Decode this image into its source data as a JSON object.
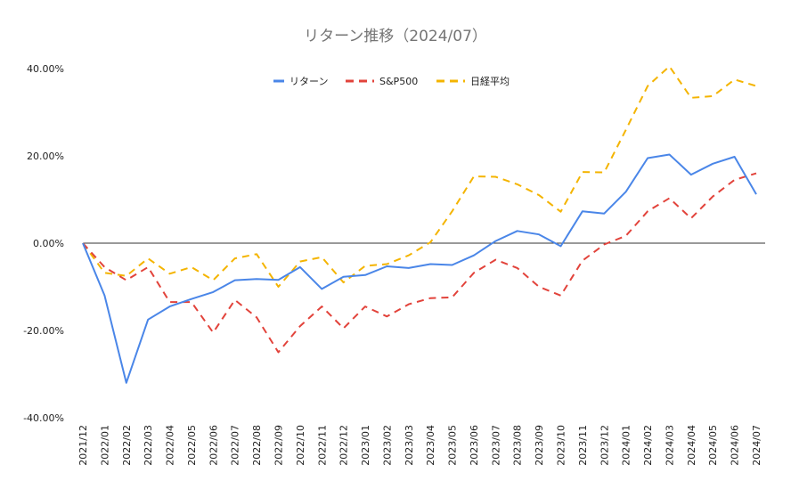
{
  "chart_data": {
    "type": "line",
    "title": "リターン推移（2024/07）",
    "xlabel": "",
    "ylabel": "",
    "ylim": [
      -0.4,
      0.4
    ],
    "yticks": [
      "-40.00%",
      "-20.00%",
      "0.00%",
      "20.00%",
      "40.00%"
    ],
    "categories": [
      "2021/12",
      "2022/01",
      "2022/02",
      "2022/03",
      "2022/04",
      "2022/05",
      "2022/06",
      "2022/07",
      "2022/08",
      "2022/09",
      "2022/10",
      "2022/11",
      "2022/12",
      "2023/01",
      "2023/02",
      "2023/03",
      "2023/04",
      "2023/05",
      "2023/06",
      "2023/07",
      "2023/08",
      "2023/09",
      "2023/10",
      "2023/11",
      "2023/12",
      "2024/01",
      "2024/02",
      "2024/03",
      "2024/04",
      "2024/05",
      "2024/06",
      "2024/07"
    ],
    "legend_position": "top",
    "grid": "zero line only",
    "series": [
      {
        "name": "リターン",
        "color": "#4a86e8",
        "dash": "solid",
        "values": [
          0.0,
          -0.12,
          -0.32,
          -0.175,
          -0.145,
          -0.128,
          -0.112,
          -0.085,
          -0.082,
          -0.084,
          -0.055,
          -0.105,
          -0.077,
          -0.073,
          -0.053,
          -0.057,
          -0.048,
          -0.05,
          -0.028,
          0.005,
          0.028,
          0.02,
          -0.007,
          0.073,
          0.068,
          0.118,
          0.195,
          0.203,
          0.157,
          0.182,
          0.198,
          0.112
        ]
      },
      {
        "name": "S&P500",
        "color": "#e2433b",
        "dash": "dashed",
        "values": [
          0.0,
          -0.055,
          -0.085,
          -0.055,
          -0.135,
          -0.135,
          -0.205,
          -0.13,
          -0.17,
          -0.25,
          -0.19,
          -0.145,
          -0.195,
          -0.145,
          -0.168,
          -0.14,
          -0.126,
          -0.124,
          -0.068,
          -0.038,
          -0.057,
          -0.1,
          -0.12,
          -0.04,
          -0.003,
          0.017,
          0.073,
          0.103,
          0.057,
          0.107,
          0.145,
          0.16
        ]
      },
      {
        "name": "日経平均",
        "color": "#f4b400",
        "dash": "dashed",
        "values": [
          0.0,
          -0.068,
          -0.075,
          -0.035,
          -0.07,
          -0.055,
          -0.085,
          -0.035,
          -0.025,
          -0.1,
          -0.042,
          -0.032,
          -0.09,
          -0.052,
          -0.048,
          -0.028,
          0.002,
          0.073,
          0.153,
          0.152,
          0.135,
          0.11,
          0.072,
          0.163,
          0.162,
          0.26,
          0.36,
          0.405,
          0.333,
          0.337,
          0.375,
          0.36
        ]
      }
    ]
  }
}
